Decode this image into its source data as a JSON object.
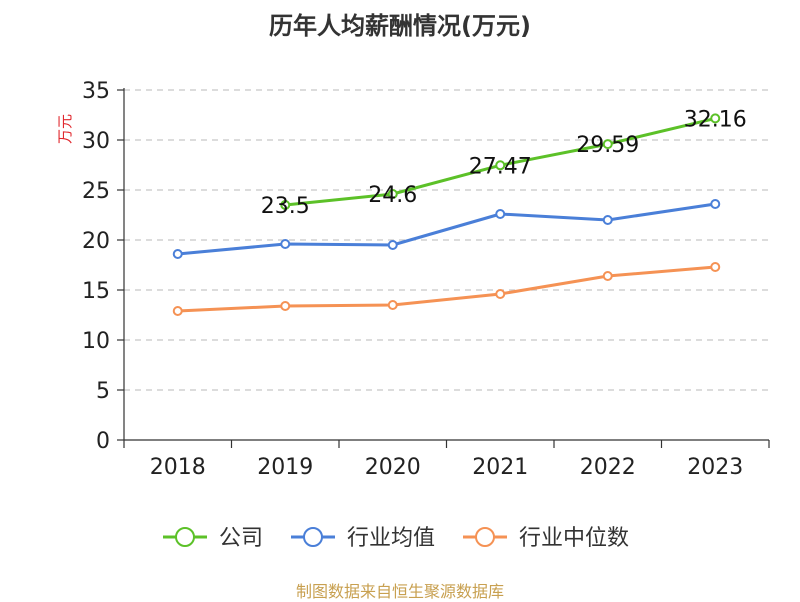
{
  "title": "历年人均薪酬情况(万元)",
  "footer": "制图数据来自恒生聚源数据库",
  "chart_data": {
    "type": "line",
    "title": "历年人均薪酬情况(万元)",
    "xlabel": "",
    "ylabel": "万元",
    "ylabel_color": "#e0282e",
    "categories": [
      "2018",
      "2019",
      "2020",
      "2021",
      "2022",
      "2023"
    ],
    "ylim": [
      0,
      35
    ],
    "yticks": [
      0,
      5,
      10,
      15,
      20,
      25,
      30,
      35
    ],
    "grid": "horizontal-dashed",
    "legend_position": "bottom",
    "series": [
      {
        "name": "公司",
        "color": "#5cc128",
        "values": [
          null,
          23.5,
          24.6,
          27.47,
          29.59,
          32.16
        ],
        "labels": [
          "",
          "23.5",
          "24.6",
          "27.47",
          "29.59",
          "32.16"
        ]
      },
      {
        "name": "行业均值",
        "color": "#4a7fd8",
        "values": [
          18.6,
          19.6,
          19.5,
          22.6,
          22.0,
          23.6
        ],
        "labels": []
      },
      {
        "name": "行业中位数",
        "color": "#f59254",
        "values": [
          12.9,
          13.4,
          13.5,
          14.6,
          16.4,
          17.3
        ],
        "labels": []
      }
    ]
  }
}
